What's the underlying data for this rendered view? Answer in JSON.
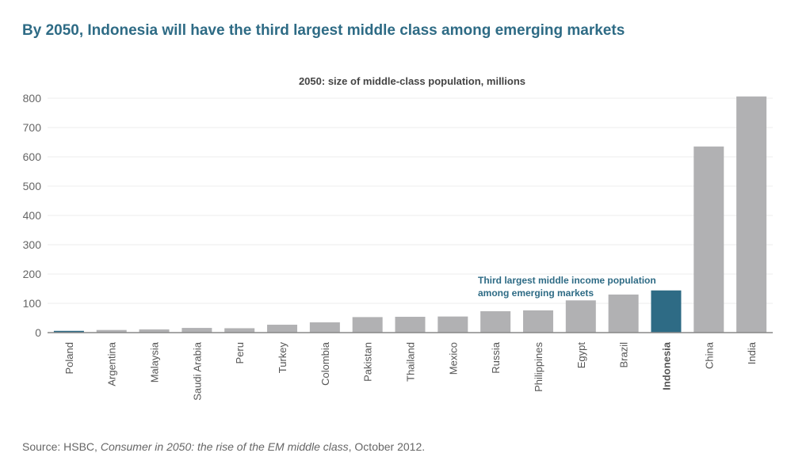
{
  "title": "By 2050, Indonesia will have the third largest middle class among emerging markets",
  "source": {
    "prefix": "Source: HSBC, ",
    "italic": "Consumer in 2050: the rise of the EM middle class",
    "suffix": ", October 2012."
  },
  "colors": {
    "highlight": "#2e6b85",
    "bar": "#b1b1b3"
  },
  "chart_data": {
    "type": "bar",
    "title": "2050: size of middle-class population, millions",
    "categories": [
      "Poland",
      "Argentina",
      "Malaysia",
      "Saudi Arabia",
      "Peru",
      "Turkey",
      "Colombia",
      "Pakistan",
      "Thailand",
      "Mexico",
      "Russia",
      "Philippines",
      "Egypt",
      "Brazil",
      "Indonesia",
      "China",
      "India"
    ],
    "values": [
      6,
      9,
      11,
      16,
      15,
      27,
      35,
      53,
      54,
      55,
      73,
      76,
      110,
      130,
      144,
      635,
      806
    ],
    "highlighted": [
      "Poland",
      "Indonesia"
    ],
    "bold_label": "Indonesia",
    "yticks": [
      0,
      100,
      200,
      300,
      400,
      500,
      600,
      700,
      800
    ],
    "ylim": [
      0,
      800
    ],
    "xlabel": "",
    "ylabel": "",
    "annotation": [
      "Third largest middle income population",
      "among emerging markets"
    ],
    "grid": true
  }
}
